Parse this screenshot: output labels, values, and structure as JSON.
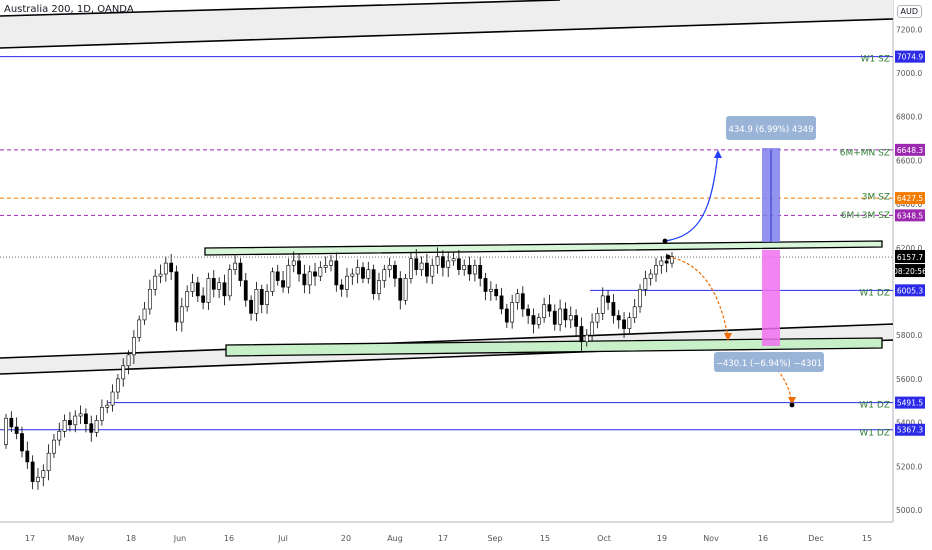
{
  "header": {
    "title": "Australia 200, 1D, OANDA",
    "currency": "AUD"
  },
  "chart_data": {
    "type": "candlestick",
    "symbol": "Australia 200",
    "interval": "1D",
    "source": "OANDA",
    "currency": "AUD",
    "ylim": [
      4900,
      7400
    ],
    "y_ticks": [
      5000,
      5200,
      5400,
      5600,
      5800,
      6000,
      6200,
      6400,
      6600,
      6800,
      7000,
      7200
    ],
    "y_tick_labels": [
      "5000.0",
      "5200.0",
      "5400.0",
      "5600.0",
      "5800.0",
      "6000.0",
      "6200.0",
      "6400.0",
      "6600.0",
      "6800.0",
      "7000.0",
      "7200.0"
    ],
    "x_tick_labels": [
      "17",
      "May",
      "18",
      "Jun",
      "16",
      "Jul",
      "20",
      "Aug",
      "17",
      "Sep",
      "15",
      "Oct",
      "19",
      "Nov",
      "16",
      "Dec",
      "15"
    ],
    "last_price": "6157.7",
    "countdown": "08:20:56",
    "price_labels": [
      {
        "value": "7074.9",
        "price": 7074.9,
        "color": "#2a2ae8"
      },
      {
        "value": "6648.3",
        "price": 6648.3,
        "color": "#9c27b0"
      },
      {
        "value": "6427.5",
        "price": 6427.5,
        "color": "#f57c00"
      },
      {
        "value": "6348.5",
        "price": 6348.5,
        "color": "#9c27b0"
      },
      {
        "value": "6005.3",
        "price": 6005.3,
        "color": "#2a2ae8"
      },
      {
        "value": "5491.5",
        "price": 5491.5,
        "color": "#2a2ae8"
      },
      {
        "value": "5367.3",
        "price": 5367.3,
        "color": "#2a2ae8"
      }
    ],
    "zone_labels": [
      {
        "text": "W1 SZ",
        "price": 7070
      },
      {
        "text": "6M+MN SZ",
        "price": 6640
      },
      {
        "text": "3M SZ",
        "price": 6440
      },
      {
        "text": "6M+3M SZ",
        "price": 6355
      },
      {
        "text": "W1 DZ",
        "price": 6000
      },
      {
        "text": "W1 DZ",
        "price": 5488
      },
      {
        "text": "W1 DZ",
        "price": 5360
      }
    ],
    "measure_up": "434.9 (6.99%) 4349",
    "measure_down": "−430.1 (−6.94%) −4301",
    "closes": [
      5420,
      5380,
      5350,
      5270,
      5220,
      5130,
      5150,
      5180,
      5260,
      5320,
      5360,
      5410,
      5390,
      5430,
      5440,
      5395,
      5355,
      5410,
      5470,
      5480,
      5540,
      5600,
      5660,
      5710,
      5790,
      5870,
      5920,
      6010,
      6070,
      6080,
      6130,
      6090,
      5860,
      5930,
      6000,
      6040,
      5980,
      5950,
      6060,
      6010,
      6040,
      5980,
      6100,
      6130,
      6050,
      5960,
      5900,
      6010,
      5940,
      6000,
      6090,
      6050,
      6020,
      6120,
      6140,
      6080,
      6030,
      6090,
      6070,
      6110,
      6120,
      6140,
      6030,
      6010,
      6070,
      6080,
      6110,
      6060,
      6100,
      5990,
      6050,
      6100,
      6120,
      6060,
      5960,
      6060,
      6150,
      6100,
      6130,
      6070,
      6120,
      6160,
      6110,
      6140,
      6150,
      6100,
      6120,
      6080,
      6120,
      6060,
      6000,
      6010,
      5980,
      5920,
      5860,
      5950,
      5990,
      5920,
      5890,
      5850,
      5880,
      5940,
      5910,
      5850,
      5920,
      5870,
      5890,
      5840,
      5770,
      5800,
      5860,
      5900,
      5980,
      5950,
      5890,
      5870,
      5830,
      5880,
      5930,
      6010,
      6060,
      6080,
      6120,
      6140,
      6130,
      6160
    ]
  }
}
